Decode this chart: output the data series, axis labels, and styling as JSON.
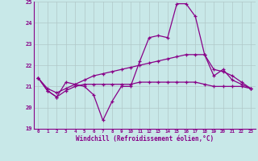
{
  "xlabel": "Windchill (Refroidissement éolien,°C)",
  "background_color": "#c8e8e8",
  "grid_color": "#b0c8c8",
  "line_color": "#880088",
  "x_values": [
    0,
    1,
    2,
    3,
    4,
    5,
    6,
    7,
    8,
    9,
    10,
    11,
    12,
    13,
    14,
    15,
    16,
    17,
    18,
    19,
    20,
    21,
    22,
    23
  ],
  "ylim": [
    19,
    25
  ],
  "xlim": [
    -0.5,
    23.5
  ],
  "yticks": [
    19,
    20,
    21,
    22,
    23,
    24,
    25
  ],
  "xticks": [
    0,
    1,
    2,
    3,
    4,
    5,
    6,
    7,
    8,
    9,
    10,
    11,
    12,
    13,
    14,
    15,
    16,
    17,
    18,
    19,
    20,
    21,
    22,
    23
  ],
  "series1": [
    21.4,
    20.8,
    20.5,
    21.2,
    21.1,
    21.0,
    20.6,
    19.4,
    20.3,
    21.0,
    21.0,
    22.2,
    23.3,
    23.4,
    23.3,
    24.9,
    24.9,
    24.3,
    22.5,
    21.5,
    21.8,
    21.3,
    21.1,
    20.9
  ],
  "series2": [
    21.4,
    20.8,
    20.5,
    20.8,
    21.0,
    21.1,
    21.1,
    21.1,
    21.1,
    21.1,
    21.1,
    21.2,
    21.2,
    21.2,
    21.2,
    21.2,
    21.2,
    21.2,
    21.1,
    21.0,
    21.0,
    21.0,
    21.0,
    20.9
  ],
  "series3": [
    21.4,
    20.9,
    20.7,
    20.9,
    21.1,
    21.3,
    21.5,
    21.6,
    21.7,
    21.8,
    21.9,
    22.0,
    22.1,
    22.2,
    22.3,
    22.4,
    22.5,
    22.5,
    22.5,
    21.8,
    21.7,
    21.5,
    21.2,
    20.9
  ]
}
